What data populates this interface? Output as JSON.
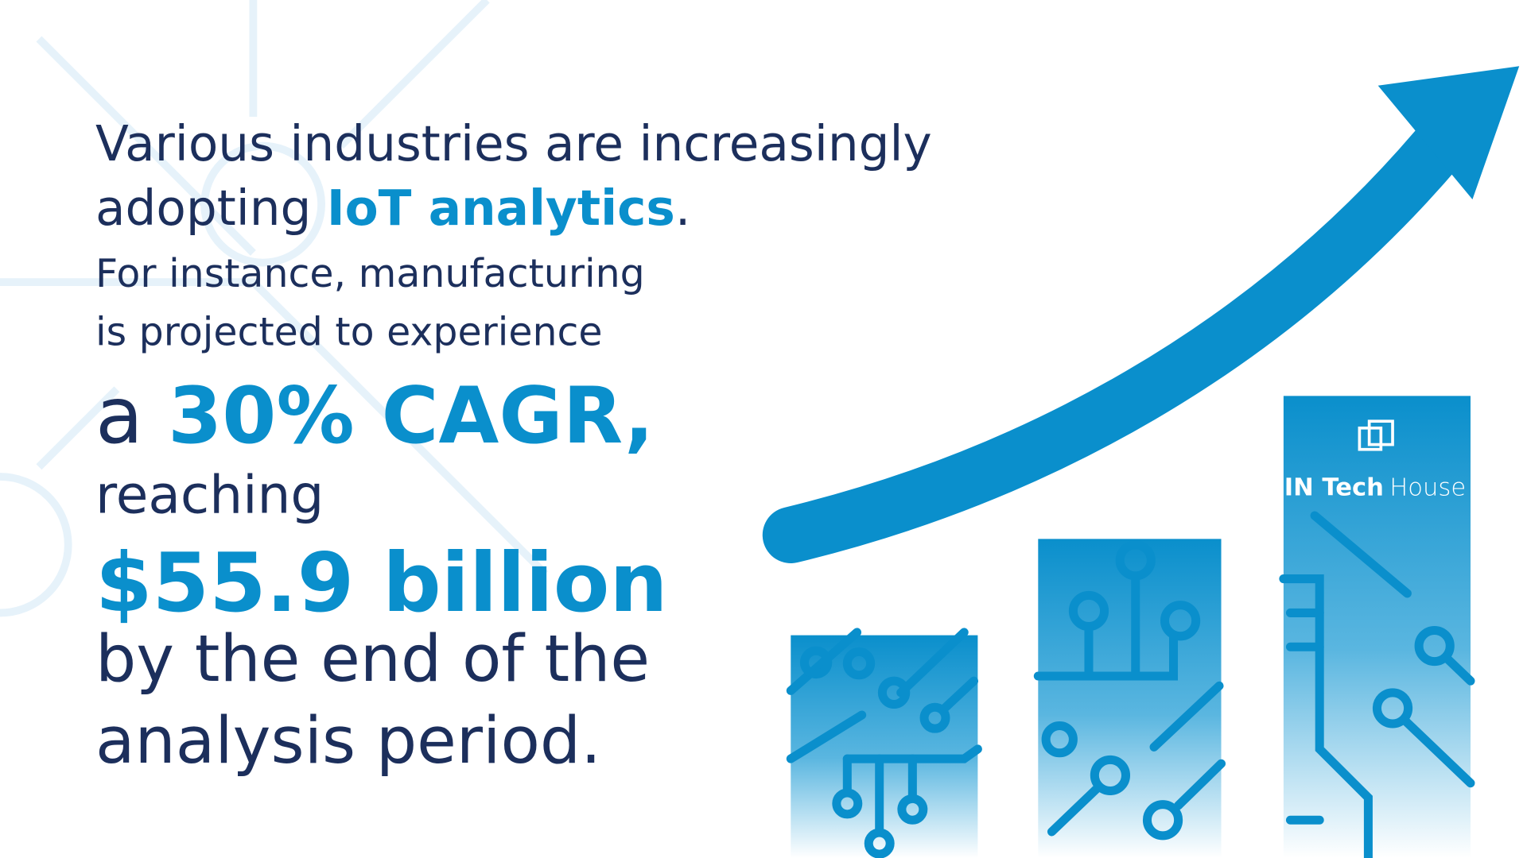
{
  "headline": {
    "line1": "Various industries are increasingly",
    "line2": {
      "before": "adopting ",
      "highlight": "IoT analytics",
      "after": "."
    },
    "line3": "For instance, manufacturing",
    "line4": "is projected to experience",
    "line5": {
      "before": "a ",
      "highlight": "30% CAGR,"
    },
    "line6": "reaching",
    "line7": "$55.9 billion",
    "line8": "by the end of the",
    "line9": "analysis period."
  },
  "logo": {
    "bold": "IN Tech",
    "light": "House"
  }
}
